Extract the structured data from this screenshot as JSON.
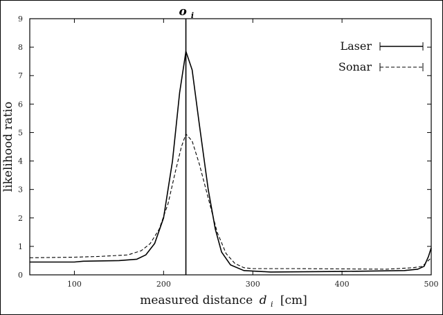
{
  "chart_data": {
    "type": "line",
    "title": "",
    "xlabel": "measured distance d_i [cm]",
    "xlabel_main": "measured distance",
    "xlabel_var": "d",
    "xlabel_sub": "i",
    "xlabel_unit": "[cm]",
    "ylabel": "likelihood ratio",
    "xlim": [
      50,
      500
    ],
    "ylim": [
      0,
      9
    ],
    "x_ticks": [
      100,
      200,
      300,
      400,
      500
    ],
    "y_ticks": [
      0,
      1,
      2,
      3,
      4,
      5,
      6,
      7,
      8,
      9
    ],
    "grid": false,
    "legend_position": "top-right",
    "marker": {
      "label": "o_i",
      "label_main": "o",
      "label_sub": "i",
      "x": 225
    },
    "series": [
      {
        "name": "Laser",
        "style": "solid",
        "points": [
          [
            50,
            0.45
          ],
          [
            100,
            0.45
          ],
          [
            110,
            0.48
          ],
          [
            150,
            0.5
          ],
          [
            170,
            0.55
          ],
          [
            180,
            0.7
          ],
          [
            190,
            1.1
          ],
          [
            200,
            2.0
          ],
          [
            210,
            4.0
          ],
          [
            218,
            6.4
          ],
          [
            225,
            7.85
          ],
          [
            232,
            7.2
          ],
          [
            240,
            5.3
          ],
          [
            250,
            3.0
          ],
          [
            258,
            1.6
          ],
          [
            265,
            0.8
          ],
          [
            275,
            0.35
          ],
          [
            290,
            0.15
          ],
          [
            320,
            0.1
          ],
          [
            400,
            0.12
          ],
          [
            470,
            0.15
          ],
          [
            485,
            0.2
          ],
          [
            492,
            0.3
          ],
          [
            497,
            0.65
          ],
          [
            500,
            0.95
          ]
        ]
      },
      {
        "name": "Sonar",
        "style": "dashed",
        "points": [
          [
            50,
            0.6
          ],
          [
            100,
            0.62
          ],
          [
            130,
            0.65
          ],
          [
            160,
            0.7
          ],
          [
            175,
            0.85
          ],
          [
            185,
            1.1
          ],
          [
            195,
            1.6
          ],
          [
            205,
            2.5
          ],
          [
            213,
            3.6
          ],
          [
            220,
            4.5
          ],
          [
            225,
            4.95
          ],
          [
            232,
            4.7
          ],
          [
            240,
            3.9
          ],
          [
            250,
            2.7
          ],
          [
            260,
            1.5
          ],
          [
            270,
            0.75
          ],
          [
            280,
            0.4
          ],
          [
            290,
            0.25
          ],
          [
            300,
            0.22
          ],
          [
            350,
            0.22
          ],
          [
            450,
            0.2
          ],
          [
            480,
            0.25
          ],
          [
            490,
            0.3
          ],
          [
            495,
            0.45
          ],
          [
            500,
            0.6
          ]
        ]
      }
    ]
  }
}
